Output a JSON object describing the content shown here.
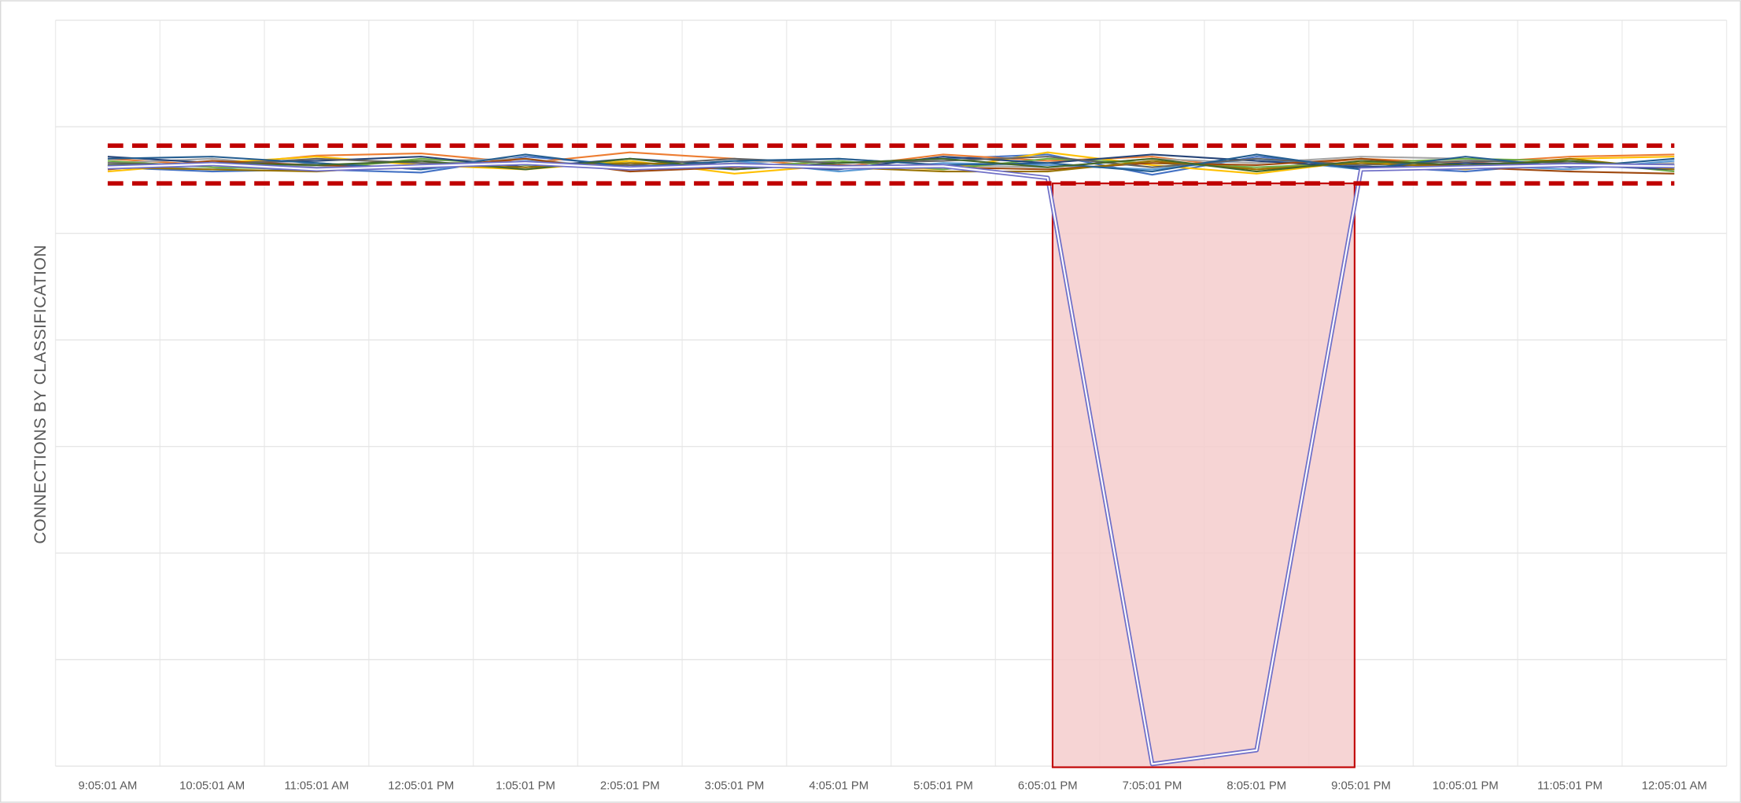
{
  "chart_data": {
    "type": "line",
    "y_label": "CONNECTIONS BY CLASSIFICATION",
    "categories": [
      "9:05:01 AM",
      "10:05:01 AM",
      "11:05:01 AM",
      "12:05:01 PM",
      "1:05:01 PM",
      "2:05:01 PM",
      "3:05:01 PM",
      "4:05:01 PM",
      "5:05:01 PM",
      "6:05:01 PM",
      "7:05:01 PM",
      "8:05:01 PM",
      "9:05:01 PM",
      "10:05:01 PM",
      "11:05:01 PM",
      "12:05:01 AM"
    ],
    "ylim": [
      0,
      7
    ],
    "yticks": [
      0,
      1,
      2,
      3,
      4,
      5,
      6,
      7
    ],
    "grid": true,
    "series": [
      {
        "color": "#4472c4",
        "values": [
          5.62,
          5.58,
          5.6,
          5.57,
          5.72,
          5.64,
          5.6,
          5.66,
          5.7,
          5.74,
          5.55,
          5.72,
          5.63,
          5.58,
          5.66,
          5.62
        ]
      },
      {
        "color": "#ed7d31",
        "values": [
          5.7,
          5.64,
          5.73,
          5.75,
          5.66,
          5.76,
          5.7,
          5.62,
          5.74,
          5.68,
          5.72,
          5.6,
          5.7,
          5.66,
          5.72,
          5.74
        ]
      },
      {
        "color": "#a5a5a5",
        "values": [
          5.66,
          5.7,
          5.62,
          5.68,
          5.7,
          5.6,
          5.66,
          5.7,
          5.64,
          5.62,
          5.7,
          5.66,
          5.72,
          5.7,
          5.62,
          5.66
        ]
      },
      {
        "color": "#ffc000",
        "values": [
          5.58,
          5.66,
          5.72,
          5.64,
          5.6,
          5.68,
          5.56,
          5.64,
          5.6,
          5.76,
          5.64,
          5.56,
          5.68,
          5.6,
          5.7,
          5.72
        ]
      },
      {
        "color": "#5b9bd5",
        "values": [
          5.64,
          5.6,
          5.66,
          5.6,
          5.68,
          5.62,
          5.68,
          5.58,
          5.66,
          5.64,
          5.6,
          5.7,
          5.6,
          5.64,
          5.6,
          5.68
        ]
      },
      {
        "color": "#70ad47",
        "values": [
          5.68,
          5.62,
          5.6,
          5.7,
          5.64,
          5.66,
          5.62,
          5.68,
          5.6,
          5.7,
          5.66,
          5.62,
          5.66,
          5.7,
          5.68,
          5.58
        ]
      },
      {
        "color": "#264478",
        "values": [
          5.72,
          5.66,
          5.68,
          5.72,
          5.62,
          5.7,
          5.64,
          5.6,
          5.72,
          5.66,
          5.74,
          5.68,
          5.62,
          5.66,
          5.64,
          5.6
        ]
      },
      {
        "color": "#9e480e",
        "values": [
          5.6,
          5.68,
          5.64,
          5.62,
          5.7,
          5.58,
          5.62,
          5.64,
          5.62,
          5.6,
          5.66,
          5.64,
          5.7,
          5.62,
          5.58,
          5.56
        ]
      },
      {
        "color": "#636363",
        "values": [
          5.66,
          5.64,
          5.7,
          5.66,
          5.66,
          5.64,
          5.7,
          5.66,
          5.68,
          5.72,
          5.62,
          5.7,
          5.64,
          5.68,
          5.66,
          5.64
        ]
      },
      {
        "color": "#997300",
        "values": [
          5.62,
          5.6,
          5.58,
          5.64,
          5.62,
          5.66,
          5.64,
          5.62,
          5.58,
          5.58,
          5.68,
          5.6,
          5.66,
          5.62,
          5.7,
          5.6
        ]
      },
      {
        "color": "#255e91",
        "values": [
          5.7,
          5.72,
          5.66,
          5.6,
          5.74,
          5.62,
          5.68,
          5.7,
          5.64,
          5.66,
          5.58,
          5.74,
          5.6,
          5.72,
          5.62,
          5.7
        ]
      },
      {
        "color": "#43682b",
        "values": [
          5.64,
          5.66,
          5.64,
          5.68,
          5.6,
          5.7,
          5.6,
          5.66,
          5.7,
          5.62,
          5.7,
          5.58,
          5.68,
          5.64,
          5.68,
          5.62
        ]
      },
      {
        "color": "#7070c8",
        "values": [
          5.62,
          5.65,
          5.6,
          5.63,
          5.66,
          5.61,
          5.64,
          5.62,
          5.63,
          5.52,
          0.02,
          0.15,
          5.6,
          5.62,
          5.64,
          5.63
        ]
      }
    ]
  }
}
